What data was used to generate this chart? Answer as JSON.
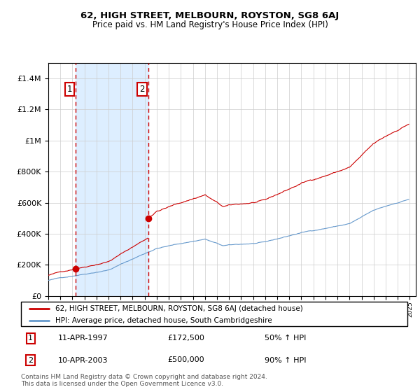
{
  "title": "62, HIGH STREET, MELBOURN, ROYSTON, SG8 6AJ",
  "subtitle": "Price paid vs. HM Land Registry's House Price Index (HPI)",
  "legend_line1": "62, HIGH STREET, MELBOURN, ROYSTON, SG8 6AJ (detached house)",
  "legend_line2": "HPI: Average price, detached house, South Cambridgeshire",
  "footer": "Contains HM Land Registry data © Crown copyright and database right 2024.\nThis data is licensed under the Open Government Licence v3.0.",
  "purchase1_date": "11-APR-1997",
  "purchase1_price": "£172,500",
  "purchase1_hpi": "50% ↑ HPI",
  "purchase2_date": "10-APR-2003",
  "purchase2_price": "£500,000",
  "purchase2_hpi": "90% ↑ HPI",
  "purchase1_year": 1997.28,
  "purchase2_year": 2003.28,
  "purchase1_value": 172500,
  "purchase2_value": 500000,
  "red_line_color": "#cc0000",
  "blue_line_color": "#6699cc",
  "shade_color": "#ddeeff",
  "vline_color": "#cc0000",
  "box_color": "#cc0000",
  "grid_color": "#cccccc",
  "ylim_max": 1500000,
  "xmin": 1995.0,
  "xmax": 2025.5
}
